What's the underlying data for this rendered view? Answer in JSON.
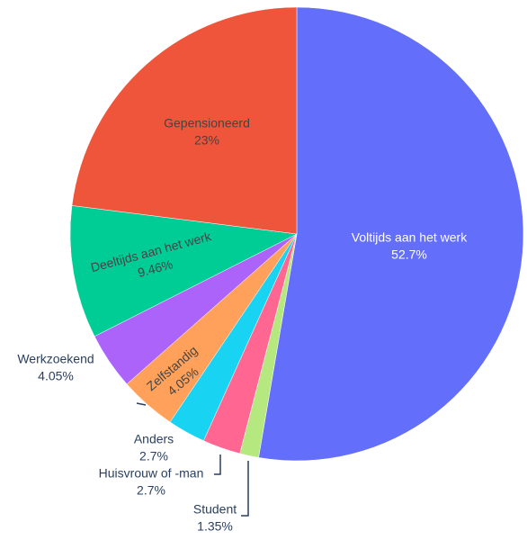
{
  "chart_data": {
    "type": "pie",
    "categories": [
      "Voltijds aan het werk",
      "Student",
      "Huisvrouw of -man",
      "Anders",
      "Zelfstandig",
      "Werkzoekend",
      "Deeltijds aan het werk",
      "Gepensioneerd"
    ],
    "values": [
      52.7,
      1.35,
      2.7,
      2.7,
      4.05,
      4.05,
      9.46,
      23
    ],
    "value_labels": [
      "52.7%",
      "1.35%",
      "2.7%",
      "2.7%",
      "4.05%",
      "4.05%",
      "9.46%",
      "23%"
    ],
    "colors": [
      "#636efa",
      "#b6e880",
      "#ff6692",
      "#19d3f3",
      "#ffa15a",
      "#ab63fa",
      "#00cc96",
      "#ef553b"
    ]
  }
}
